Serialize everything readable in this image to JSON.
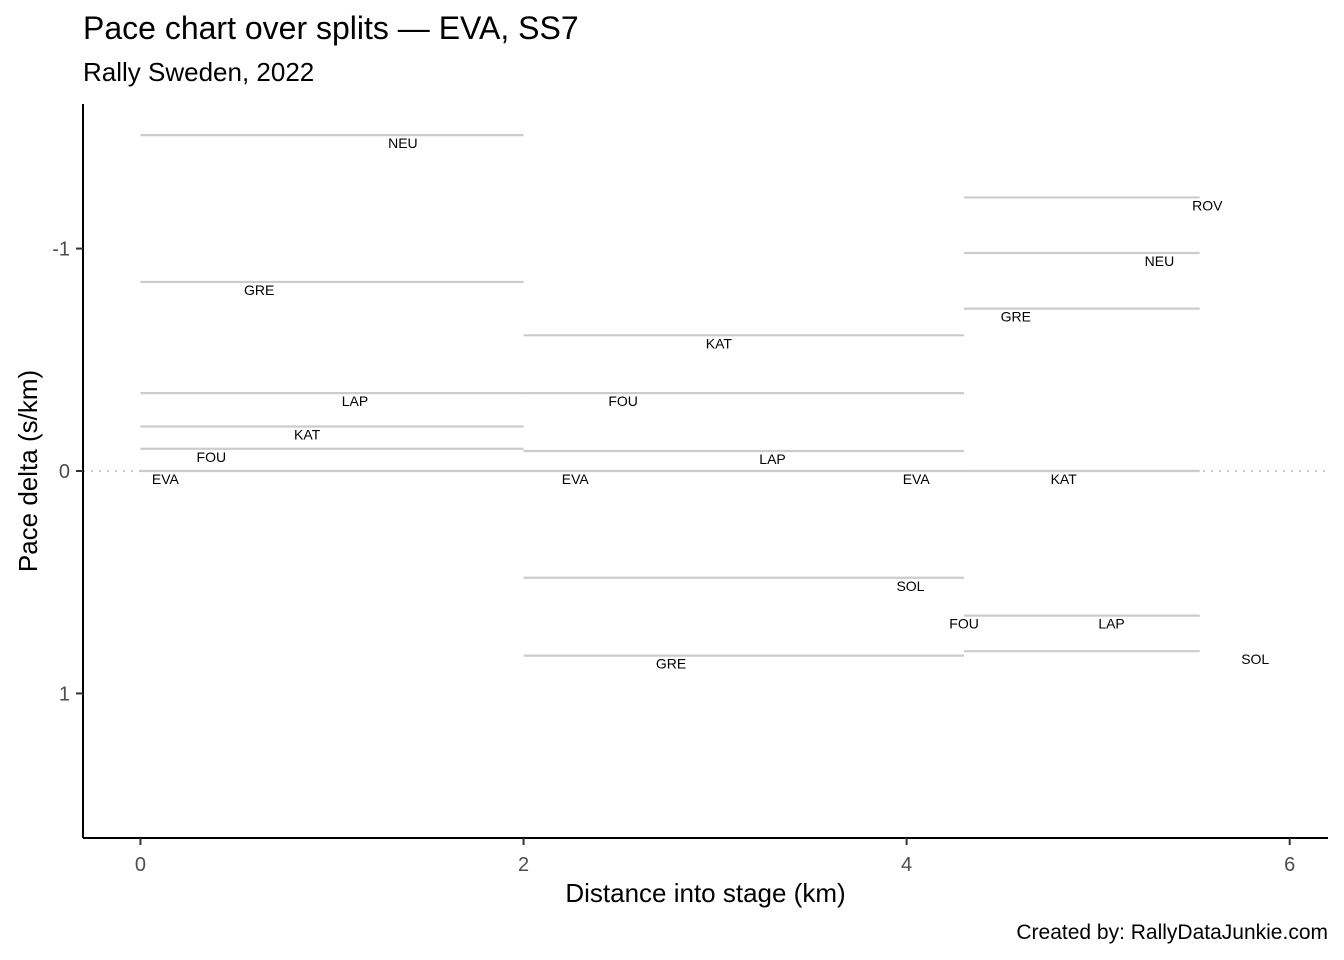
{
  "chart_data": {
    "type": "line",
    "title": "Pace chart over splits — EVA, SS7",
    "subtitle": "Rally Sweden, 2022",
    "caption": "Created by: RallyDataJunkie.com",
    "xlabel": "Distance into stage (km)",
    "ylabel": "Pace delta (s/km)",
    "xlim": [
      -0.3,
      6.2
    ],
    "ylim": [
      1.65,
      -1.65
    ],
    "y_reversed": true,
    "xticks": [
      0,
      2,
      4,
      6
    ],
    "yticks": [
      -1,
      0,
      1
    ],
    "x_tick_labels": [
      "0",
      "2",
      "4",
      "6"
    ],
    "y_tick_labels": [
      "-1",
      "0",
      "1"
    ],
    "grid": false,
    "reference_line": {
      "y": 0,
      "style": "dotted"
    },
    "segments": [
      {
        "driver": "NEU",
        "x_start": 0,
        "x_end": 2.0,
        "pace_delta": -1.51,
        "label_x": 1.37
      },
      {
        "driver": "GRE",
        "x_start": 0,
        "x_end": 2.0,
        "pace_delta": -0.85,
        "label_x": 0.62
      },
      {
        "driver": "LAP",
        "x_start": 0,
        "x_end": 2.0,
        "pace_delta": -0.35,
        "label_x": 1.12
      },
      {
        "driver": "KAT",
        "x_start": 0,
        "x_end": 2.0,
        "pace_delta": -0.2,
        "label_x": 0.87
      },
      {
        "driver": "FOU",
        "x_start": 0,
        "x_end": 2.0,
        "pace_delta": -0.1,
        "label_x": 0.37
      },
      {
        "driver": "EVA",
        "x_start": 0,
        "x_end": 2.0,
        "pace_delta": 0.0,
        "label_x": 0.13
      },
      {
        "driver": "KAT",
        "x_start": 2.0,
        "x_end": 4.3,
        "pace_delta": -0.61,
        "label_x": 3.02
      },
      {
        "driver": "FOU",
        "x_start": 2.0,
        "x_end": 4.3,
        "pace_delta": -0.35,
        "label_x": 2.52
      },
      {
        "driver": "LAP",
        "x_start": 2.0,
        "x_end": 4.3,
        "pace_delta": -0.09,
        "label_x": 3.3
      },
      {
        "driver": "EVA",
        "x_start": 2.0,
        "x_end": 4.3,
        "pace_delta": 0.0,
        "label_x": 2.27
      },
      {
        "driver": "SOL",
        "x_start": 2.0,
        "x_end": 4.3,
        "pace_delta": 0.48,
        "label_x": 4.02
      },
      {
        "driver": "GRE",
        "x_start": 2.0,
        "x_end": 4.3,
        "pace_delta": 0.83,
        "label_x": 2.77
      },
      {
        "driver": "ROV",
        "x_start": 4.3,
        "x_end": 5.53,
        "pace_delta": -1.23,
        "label_x": 5.57
      },
      {
        "driver": "NEU",
        "x_start": 4.3,
        "x_end": 5.53,
        "pace_delta": -0.98,
        "label_x": 5.32
      },
      {
        "driver": "GRE",
        "x_start": 4.3,
        "x_end": 5.53,
        "pace_delta": -0.73,
        "label_x": 4.57
      },
      {
        "driver": "EVA",
        "x_start": 4.3,
        "x_end": 5.53,
        "pace_delta": 0.0,
        "label_x": 4.05
      },
      {
        "driver": "KAT",
        "x_start": 4.3,
        "x_end": 5.53,
        "pace_delta": 0.0,
        "label_x": 4.82
      },
      {
        "driver": "FOU",
        "x_start": 4.3,
        "x_end": 5.53,
        "pace_delta": 0.65,
        "label_x": 4.3
      },
      {
        "driver": "LAP",
        "x_start": 4.3,
        "x_end": 5.53,
        "pace_delta": 0.65,
        "label_x": 5.07
      },
      {
        "driver": "SOL",
        "x_start": 4.3,
        "x_end": 5.53,
        "pace_delta": 0.81,
        "label_x": 5.82
      }
    ]
  }
}
